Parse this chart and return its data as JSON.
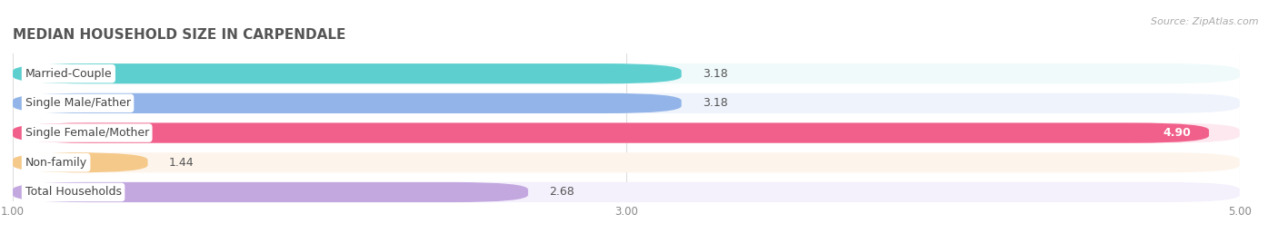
{
  "title": "MEDIAN HOUSEHOLD SIZE IN CARPENDALE",
  "source": "Source: ZipAtlas.com",
  "categories": [
    "Married-Couple",
    "Single Male/Father",
    "Single Female/Mother",
    "Non-family",
    "Total Households"
  ],
  "values": [
    3.18,
    3.18,
    4.9,
    1.44,
    2.68
  ],
  "bar_colors": [
    "#5ecfcf",
    "#92b4e8",
    "#f0608a",
    "#f5c98a",
    "#c3a8e0"
  ],
  "bar_bg_colors": [
    "#f0fafa",
    "#eff3fc",
    "#fde8f0",
    "#fdf5ec",
    "#f4f0fc"
  ],
  "value_inside": [
    false,
    false,
    true,
    false,
    false
  ],
  "xlim": [
    1.0,
    5.0
  ],
  "xticks": [
    1.0,
    3.0,
    5.0
  ],
  "title_fontsize": 11,
  "label_fontsize": 9,
  "value_fontsize": 9,
  "background_color": "#ffffff"
}
